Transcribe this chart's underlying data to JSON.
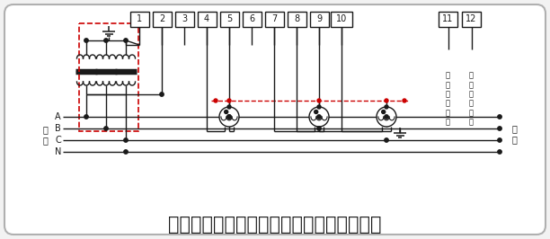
{
  "title": "三相四线经电压、电流互感器接入式接线图",
  "bg_color": "#f2f2f2",
  "line_color": "#1a1a1a",
  "dashed_color": "#cc0000",
  "white": "#ffffff",
  "gray_border": "#aaaaaa",
  "terminals_1_10": [
    "1",
    "2",
    "3",
    "4",
    "5",
    "6",
    "7",
    "8",
    "9",
    "10"
  ],
  "terminals_11_12": [
    "11",
    "12"
  ],
  "input_labels": [
    "A",
    "B",
    "C",
    "N"
  ],
  "left_label": "输\n入",
  "right_label": "输\n出",
  "aux_label1": "辅\n助\n电\n源\n端\n子",
  "aux_label2": "辅\n助\n电\n源\n端\n子",
  "title_fontsize": 16
}
